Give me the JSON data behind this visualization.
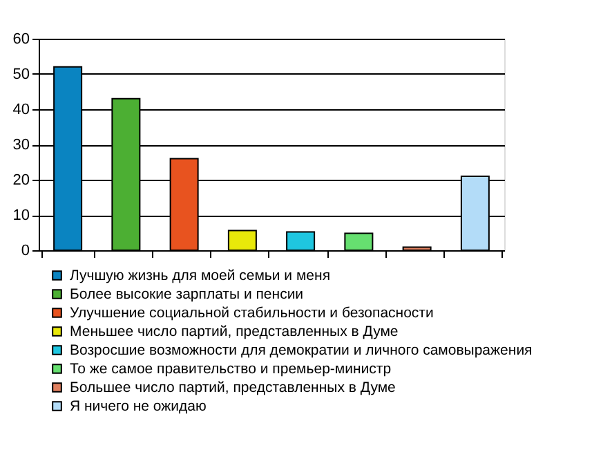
{
  "chart_data": {
    "type": "bar",
    "categories": [
      null,
      null,
      null,
      null,
      null,
      null,
      null,
      null
    ],
    "series": [
      {
        "name": "Лучшую жизнь для моей семьи и меня",
        "color": "#0a84c1",
        "values": [
          52,
          null,
          null,
          null,
          null,
          null,
          null,
          null
        ]
      },
      {
        "name": "Более высокие зарплаты и пенсии",
        "color": "#4caf33",
        "values": [
          null,
          43,
          null,
          null,
          null,
          null,
          null,
          null
        ]
      },
      {
        "name": "Улучшение социальной стабильности и безопасности",
        "color": "#e8531f",
        "values": [
          null,
          null,
          26,
          null,
          null,
          null,
          null,
          null
        ]
      },
      {
        "name": "Меньшее число партий, представленных в Думе",
        "color": "#e8e80a",
        "values": [
          null,
          null,
          null,
          5.6,
          null,
          null,
          null,
          null
        ]
      },
      {
        "name": "Возросшие возможности для демократии и личного самовыражения",
        "color": "#1fc6e0",
        "values": [
          null,
          null,
          null,
          null,
          5.2,
          null,
          null,
          null
        ]
      },
      {
        "name": "То же самое правительство и премьер-министр",
        "color": "#66e070",
        "values": [
          null,
          null,
          null,
          null,
          null,
          4.8,
          null,
          null
        ]
      },
      {
        "name": "Большее число партий, представленных в Думе",
        "color": "#e08060",
        "values": [
          null,
          null,
          null,
          null,
          null,
          null,
          0.9,
          null
        ]
      },
      {
        "name": "Я ничего не ожидаю",
        "color": "#b3dcf8",
        "values": [
          null,
          null,
          null,
          null,
          null,
          null,
          null,
          21
        ]
      }
    ],
    "ylim": [
      0,
      60
    ],
    "yticks": [
      0,
      10,
      20,
      30,
      40,
      50,
      60
    ],
    "grid": "y",
    "legend": "bottom",
    "tick_labels": "y"
  }
}
